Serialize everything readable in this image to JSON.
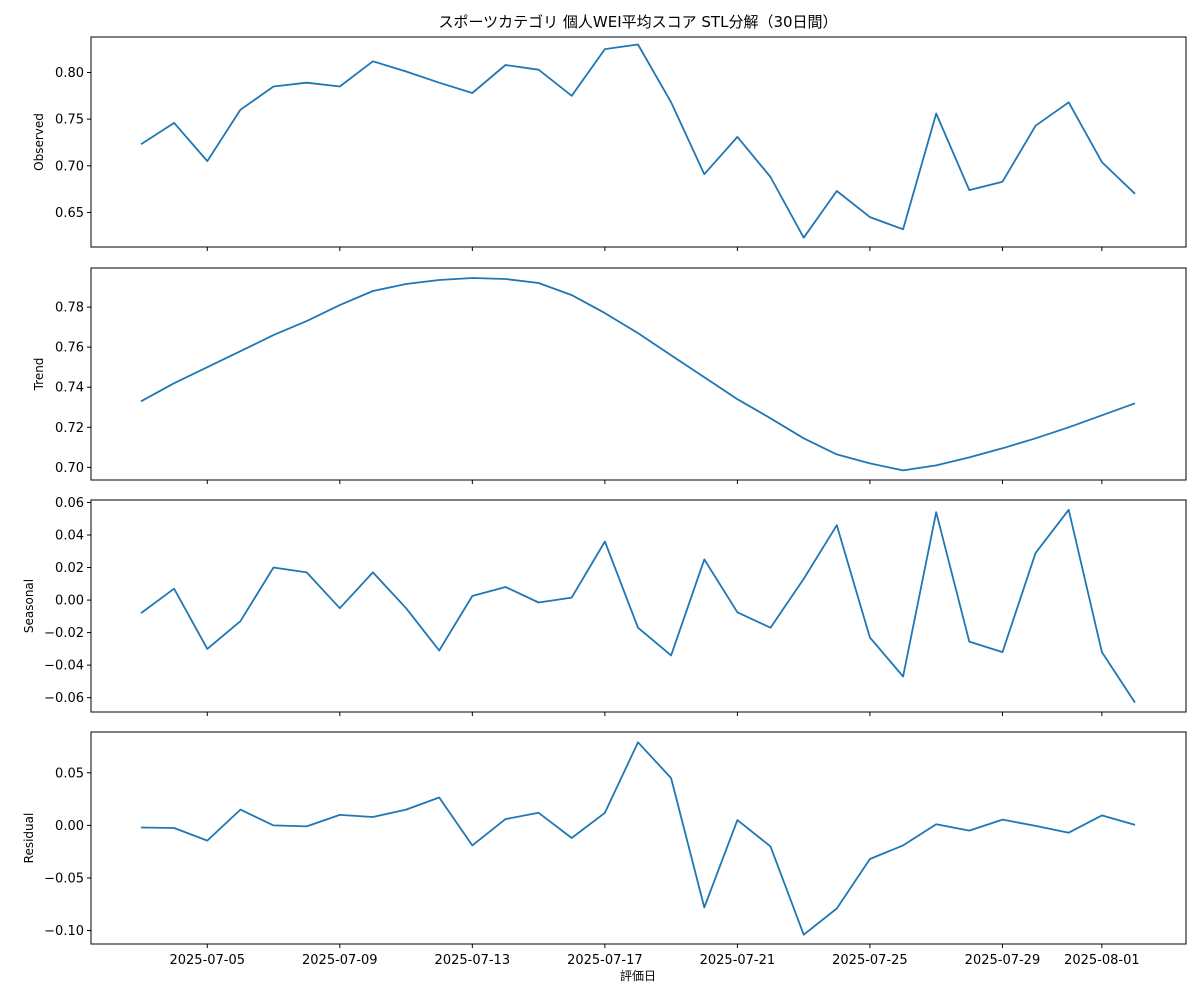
{
  "chart_data": {
    "type": "line",
    "title": "スポーツカテゴリ 個人WEI平均スコア STL分解（30日間）",
    "xlabel": "評価日",
    "x": [
      "2025-07-03",
      "2025-07-04",
      "2025-07-05",
      "2025-07-06",
      "2025-07-07",
      "2025-07-08",
      "2025-07-09",
      "2025-07-10",
      "2025-07-11",
      "2025-07-12",
      "2025-07-13",
      "2025-07-14",
      "2025-07-15",
      "2025-07-16",
      "2025-07-17",
      "2025-07-18",
      "2025-07-19",
      "2025-07-20",
      "2025-07-21",
      "2025-07-22",
      "2025-07-23",
      "2025-07-24",
      "2025-07-25",
      "2025-07-26",
      "2025-07-27",
      "2025-07-28",
      "2025-07-29",
      "2025-07-30",
      "2025-07-31",
      "2025-08-01",
      "2025-08-02"
    ],
    "x_ticks": [
      "2025-07-05",
      "2025-07-09",
      "2025-07-13",
      "2025-07-17",
      "2025-07-21",
      "2025-07-25",
      "2025-07-29",
      "2025-08-01"
    ],
    "grid": false,
    "panels": [
      {
        "ylabel": "Observed",
        "ylim": [
          0.613,
          0.838
        ],
        "y_ticks": [
          "0.65",
          "0.70",
          "0.75",
          "0.80"
        ],
        "values": [
          0.723,
          0.746,
          0.705,
          0.76,
          0.785,
          0.789,
          0.785,
          0.812,
          0.801,
          0.789,
          0.778,
          0.808,
          0.803,
          0.775,
          0.825,
          0.83,
          0.768,
          0.691,
          0.731,
          0.688,
          0.623,
          0.673,
          0.645,
          0.632,
          0.756,
          0.674,
          0.683,
          0.743,
          0.768,
          0.704,
          0.67
        ]
      },
      {
        "ylabel": "Trend",
        "ylim": [
          0.6937,
          0.7995
        ],
        "y_ticks": [
          "0.70",
          "0.72",
          "0.74",
          "0.76",
          "0.78"
        ],
        "values": [
          0.733,
          0.742,
          0.75,
          0.758,
          0.766,
          0.773,
          0.781,
          0.788,
          0.7915,
          0.7935,
          0.7945,
          0.794,
          0.792,
          0.786,
          0.777,
          0.767,
          0.756,
          0.745,
          0.734,
          0.7245,
          0.7145,
          0.7065,
          0.702,
          0.6985,
          0.701,
          0.705,
          0.7095,
          0.7145,
          0.72,
          0.726,
          0.732
        ]
      },
      {
        "ylabel": "Seasonal",
        "ylim": [
          -0.0688,
          0.0615
        ],
        "y_ticks": [
          "−0.06",
          "−0.04",
          "−0.02",
          "0.00",
          "0.02",
          "0.04",
          "0.06"
        ],
        "values": [
          -0.008,
          0.007,
          -0.03,
          -0.013,
          0.02,
          0.017,
          -0.005,
          0.017,
          -0.005,
          -0.031,
          0.0025,
          0.008,
          -0.0015,
          0.0015,
          0.036,
          -0.017,
          -0.034,
          0.025,
          -0.0075,
          -0.017,
          0.013,
          0.046,
          -0.023,
          -0.047,
          0.054,
          -0.0255,
          -0.032,
          0.029,
          0.0555,
          -0.032,
          -0.063
        ]
      },
      {
        "ylabel": "Residual",
        "ylim": [
          -0.1128,
          0.0888
        ],
        "y_ticks": [
          "−0.10",
          "−0.05",
          "0.00",
          "0.05"
        ],
        "values": [
          -0.002,
          -0.0025,
          -0.0145,
          0.015,
          0.0,
          -0.001,
          0.01,
          0.008,
          0.015,
          0.0265,
          -0.019,
          0.006,
          0.012,
          -0.012,
          0.012,
          0.079,
          0.045,
          -0.078,
          0.005,
          -0.02,
          -0.104,
          -0.079,
          -0.032,
          -0.019,
          0.001,
          -0.005,
          0.0055,
          -0.0005,
          -0.007,
          0.0095,
          0.0005
        ]
      }
    ],
    "colors": {
      "line": "#1f77b4",
      "axes": "#000000"
    }
  }
}
